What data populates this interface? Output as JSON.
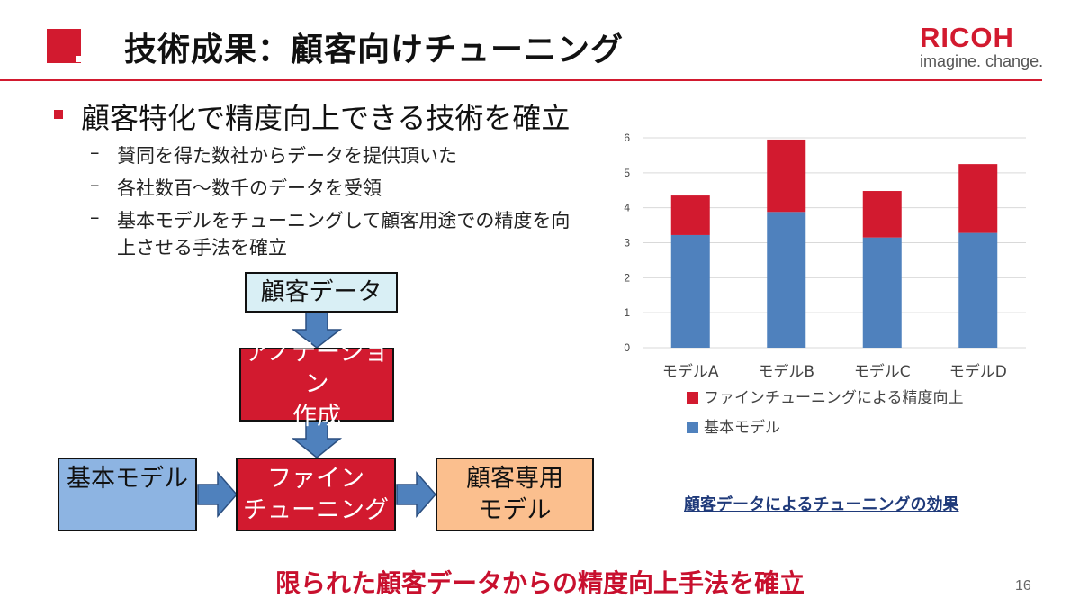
{
  "header": {
    "title": "技術成果：顧客向けチューニング",
    "logo": {
      "word": "RICOH",
      "tagline": "imagine. change."
    }
  },
  "bullets": {
    "main": "顧客特化で精度向上できる技術を確立",
    "dash": "–",
    "sub": [
      "賛同を得た数社からデータを提供頂いた",
      "各社数百～数千のデータを受領",
      "基本モデルをチューニングして顧客用途での精度を向",
      "上させる手法を確立"
    ]
  },
  "flow": {
    "customer_data": "顧客データ",
    "annotation": [
      "アノテーション",
      "作成"
    ],
    "fine_tuning": [
      "ファイン",
      "チューニング"
    ],
    "base_model": "基本モデル",
    "custom_model": [
      "顧客専用",
      "モデル"
    ]
  },
  "chart_data": {
    "type": "bar",
    "stacked": true,
    "categories": [
      "モデルA",
      "モデルB",
      "モデルC",
      "モデルD"
    ],
    "series": [
      {
        "name": "基本モデル",
        "values": [
          3.22,
          3.88,
          3.15,
          3.28
        ],
        "color": "#4f81bd"
      },
      {
        "name": "ファインチューニングによる精度向上",
        "values": [
          1.13,
          2.07,
          1.33,
          1.97
        ],
        "color": "#d21a2f"
      }
    ],
    "ylim": [
      0,
      6
    ],
    "yticks": [
      "0",
      "1",
      "2",
      "3",
      "4",
      "5",
      "6"
    ],
    "grid": true,
    "legend": "bottom",
    "legend_order": [
      1,
      0
    ]
  },
  "chart_caption": "顧客データによるチューニングの効果",
  "bottom_note": "限られた顧客データからの精度向上手法を確立",
  "page_number": "16"
}
